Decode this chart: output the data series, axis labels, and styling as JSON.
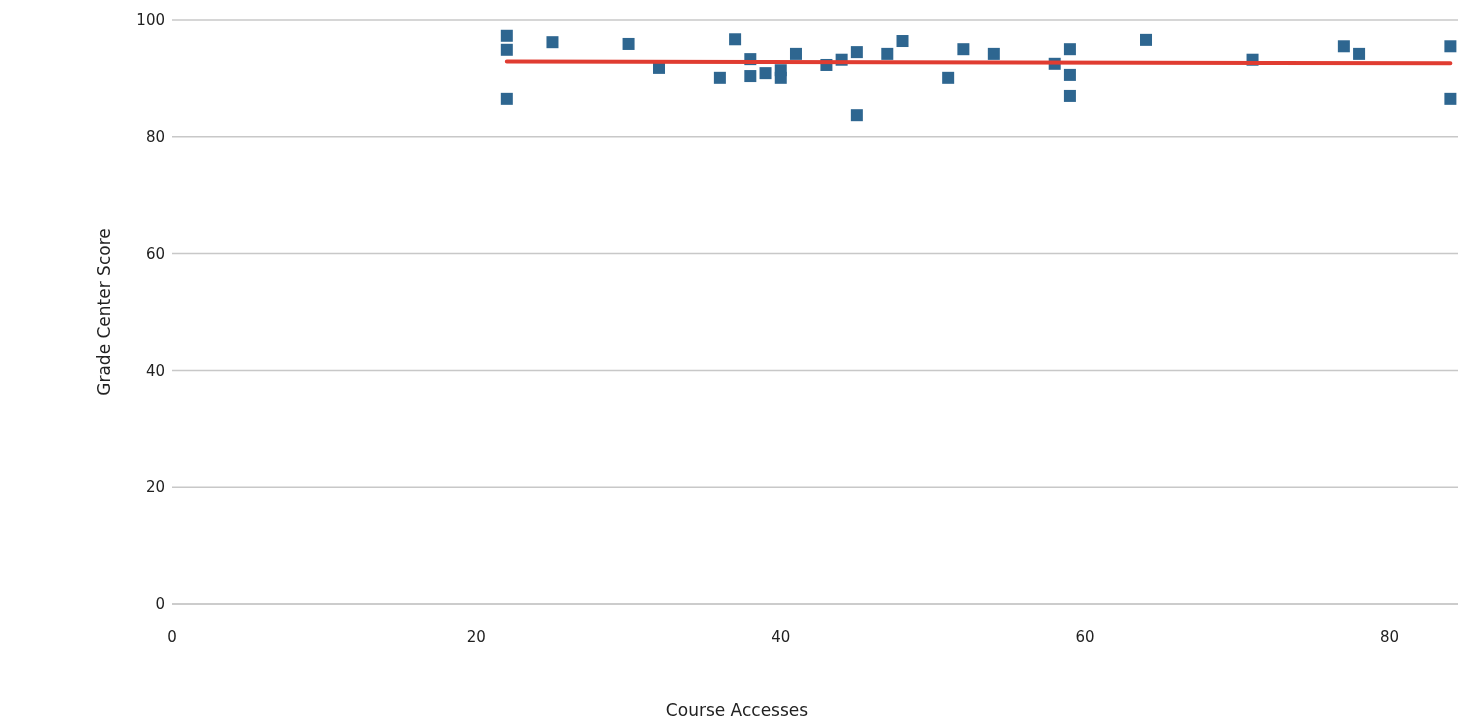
{
  "chart_data": {
    "type": "scatter",
    "xlabel": "Course Accesses",
    "ylabel": "Grade Center Score",
    "xlim": [
      0,
      84.5
    ],
    "ylim": [
      0,
      100
    ],
    "xticks": [
      0,
      20,
      40,
      60,
      80
    ],
    "yticks": [
      0,
      20,
      40,
      60,
      80,
      100
    ],
    "grid": "y",
    "marker": "square",
    "series": [
      {
        "type": "scatter",
        "color": "#2e6690",
        "x": [
          22,
          22,
          22,
          25,
          30,
          32,
          36,
          37,
          38,
          38,
          39,
          40,
          40,
          41,
          43,
          44,
          45,
          45,
          47,
          48,
          51,
          52,
          54,
          58,
          59,
          59,
          59,
          64,
          71,
          77,
          78,
          84,
          84
        ],
        "values": [
          97.3,
          94.9,
          86.5,
          96.2,
          95.9,
          91.8,
          90.1,
          96.7,
          93.3,
          90.4,
          90.9,
          91.4,
          90.1,
          94.2,
          92.3,
          93.2,
          94.5,
          83.7,
          94.2,
          96.4,
          90.1,
          95.0,
          94.2,
          92.5,
          95.0,
          90.6,
          87.0,
          96.6,
          93.2,
          95.5,
          94.2,
          95.5,
          86.5
        ]
      },
      {
        "type": "line",
        "color": "#e03c31",
        "x": [
          22,
          84
        ],
        "values": [
          92.9,
          92.6
        ],
        "marker": "none"
      }
    ]
  }
}
